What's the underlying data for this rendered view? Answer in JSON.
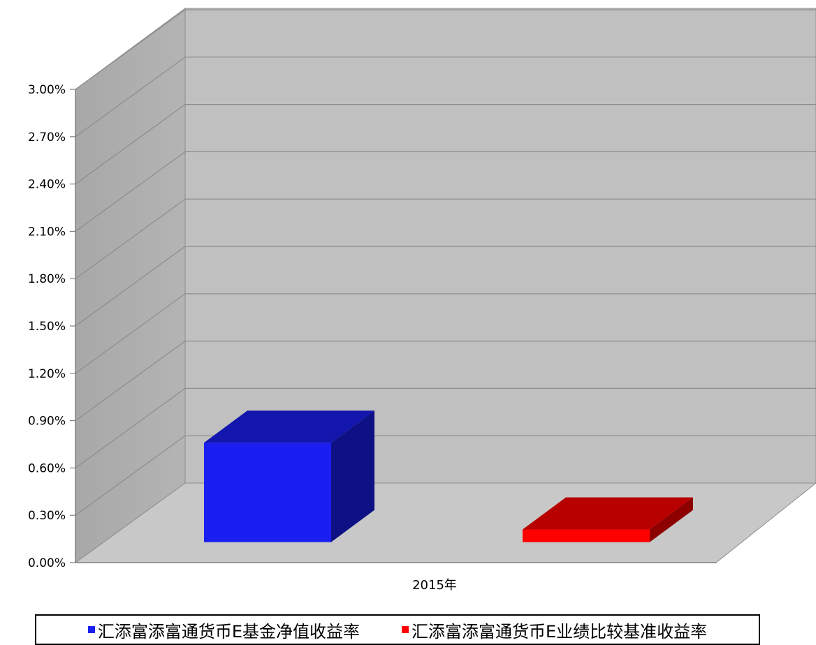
{
  "chart_data": {
    "type": "bar",
    "subtype": "3d-clustered",
    "categories": [
      "2015年"
    ],
    "series": [
      {
        "name": "汇添富添富通货币E基金净值收益率",
        "values": [
          0.63
        ],
        "color": "#1a1ef0"
      },
      {
        "name": "汇添富添富通货币E业绩比较基准收益率",
        "values": [
          0.08
        ],
        "color": "#ff0000"
      }
    ],
    "y_ticks": [
      "0.00%",
      "0.30%",
      "0.60%",
      "0.90%",
      "1.20%",
      "1.50%",
      "1.80%",
      "2.10%",
      "2.40%",
      "2.70%",
      "3.00%"
    ],
    "ylim": [
      0,
      3.0
    ],
    "y_unit": "%",
    "grid": true,
    "legend_position": "bottom"
  }
}
